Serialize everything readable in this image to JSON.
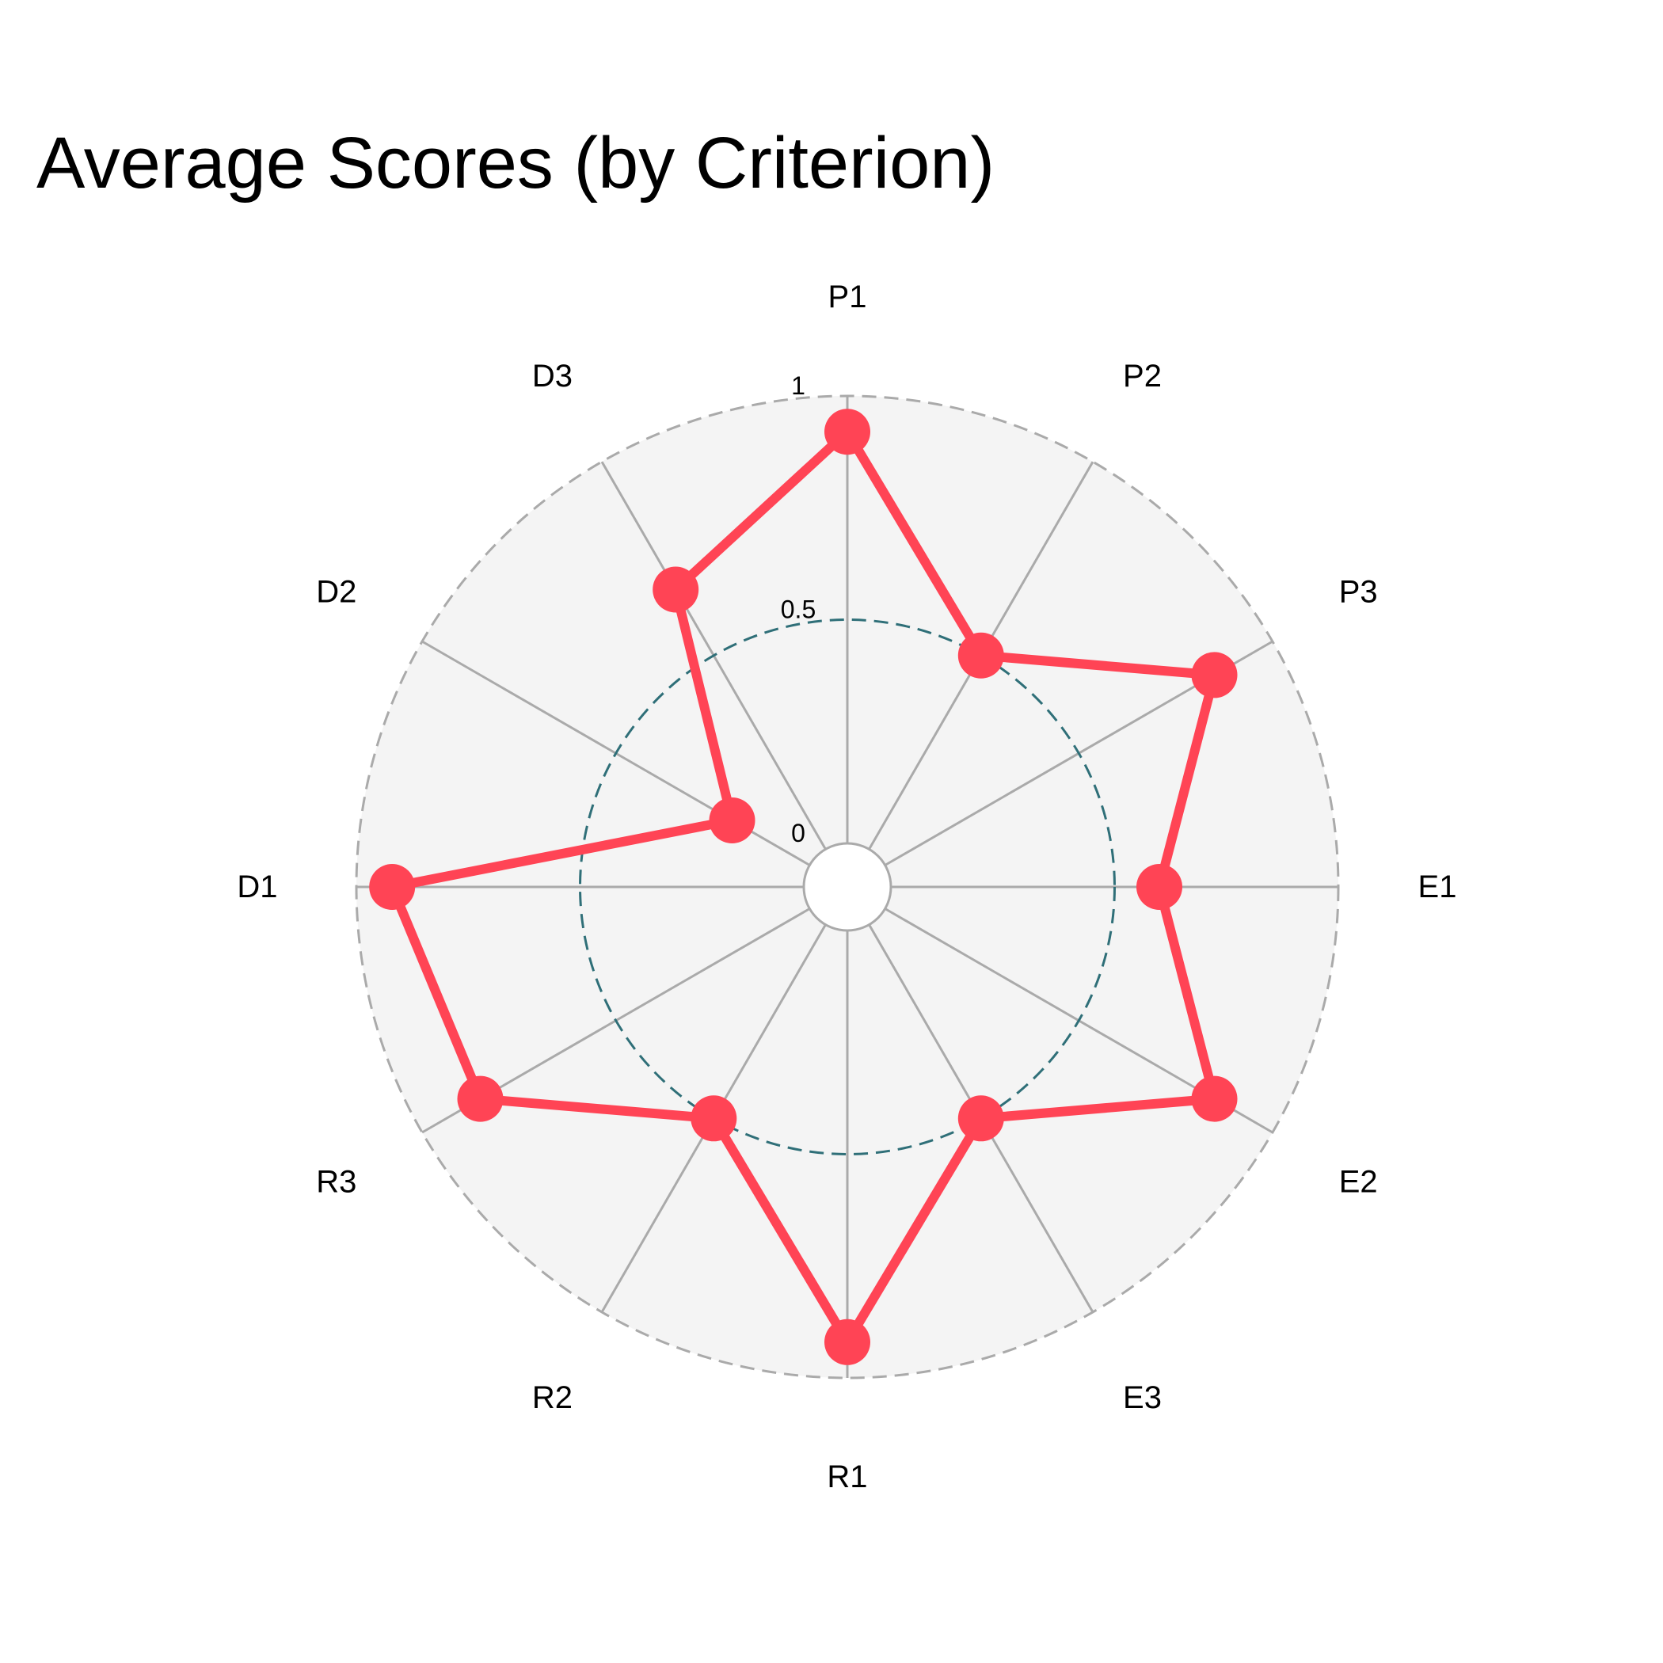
{
  "chart_data": {
    "type": "radar",
    "title": "Average Scores (by Criterion)",
    "categories": [
      "P1",
      "P2",
      "P3",
      "E1",
      "E2",
      "E3",
      "R1",
      "R2",
      "R3",
      "D1",
      "D2",
      "D3"
    ],
    "series": [
      {
        "values": [
          0.92,
          0.5,
          0.85,
          0.6,
          0.85,
          0.5,
          0.92,
          0.5,
          0.85,
          0.92,
          0.2,
          0.67
        ]
      }
    ],
    "radial_ticks": [
      {
        "value": 0,
        "label": "0"
      },
      {
        "value": 0.5,
        "label": "0.5"
      },
      {
        "value": 1,
        "label": "1"
      }
    ],
    "rlim": [
      0,
      1
    ],
    "grid": true,
    "legend": "none",
    "colors": {
      "series": "#ff4455",
      "plot_background": "#f4f4f4",
      "spokes": "#aaaaaa",
      "outer_ring": "#aaaaaa",
      "mid_ring": "#2f6f78"
    }
  }
}
